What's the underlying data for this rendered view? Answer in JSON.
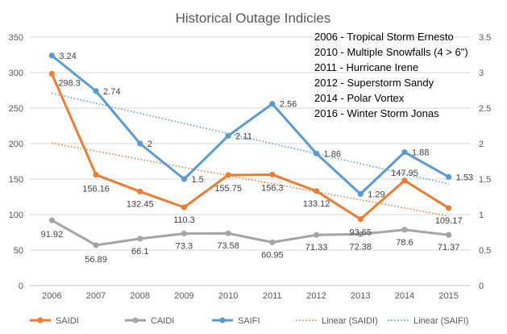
{
  "chart_data": {
    "type": "line",
    "title": "Historical Outage Indicies",
    "categories": [
      "2006",
      "2007",
      "2008",
      "2009",
      "2010",
      "2011",
      "2012",
      "2013",
      "2014",
      "2015"
    ],
    "y_left": {
      "min": 0,
      "max": 350,
      "step": 50,
      "ticks": [
        "0",
        "50",
        "100",
        "150",
        "200",
        "250",
        "300",
        "350"
      ]
    },
    "y_right": {
      "min": 0,
      "max": 3.5,
      "step": 0.5,
      "ticks": [
        "0",
        "0.5",
        "1",
        "1.5",
        "2",
        "2.5",
        "3",
        "3.5"
      ]
    },
    "grid": true,
    "legend_position": "bottom",
    "series": [
      {
        "name": "SAIDI",
        "axis": "left",
        "color": "#ed7d31",
        "values": [
          298.3,
          156.16,
          132.45,
          110.3,
          155.75,
          156.3,
          133.12,
          93.65,
          147.95,
          109.17
        ],
        "labels": [
          "298.3",
          "156.16",
          "132.45",
          "110.3",
          "155.75",
          "156.3",
          "133.12",
          "93.65",
          "147.95",
          "109.17"
        ]
      },
      {
        "name": "CAIDI",
        "axis": "left",
        "color": "#a5a5a5",
        "values": [
          91.92,
          56.89,
          66.1,
          73.3,
          73.58,
          60.95,
          71.33,
          72.38,
          78.6,
          71.37
        ],
        "labels": [
          "91.92",
          "56.89",
          "66.1",
          "73.3",
          "73.58",
          "60.95",
          "71.33",
          "72.38",
          "78.6",
          "71.37"
        ]
      },
      {
        "name": "SAIFI",
        "axis": "right",
        "color": "#5b9bd5",
        "values": [
          3.24,
          2.74,
          2.0,
          1.5,
          2.11,
          2.56,
          1.86,
          1.29,
          1.88,
          1.53
        ],
        "labels": [
          "3.24",
          "2.74",
          "2",
          "1.5",
          "2.11",
          "2.56",
          "1.86",
          "1.29",
          "1.88",
          "1.53"
        ]
      }
    ],
    "trendlines": [
      {
        "name": "Linear (SAIDI)",
        "of": "SAIDI",
        "axis": "left",
        "color": "#ed7d31"
      },
      {
        "name": "Linear (SAIFI)",
        "of": "SAIFI",
        "axis": "right",
        "color": "#5b9bd5"
      }
    ],
    "annotations": [
      "2006 - Tropical Storm Ernesto",
      "2010 - Multiple Snowfalls (4 > 6\")",
      "2011 - Hurricane Irene",
      "2012 - Superstorm Sandy",
      "2014 - Polar Vortex",
      "2016 - Winter Storm Jonas"
    ],
    "legend": [
      "SAIDI",
      "CAIDI",
      "SAIFI",
      "Linear (SAIDI)",
      "Linear (SAIFI)"
    ]
  }
}
